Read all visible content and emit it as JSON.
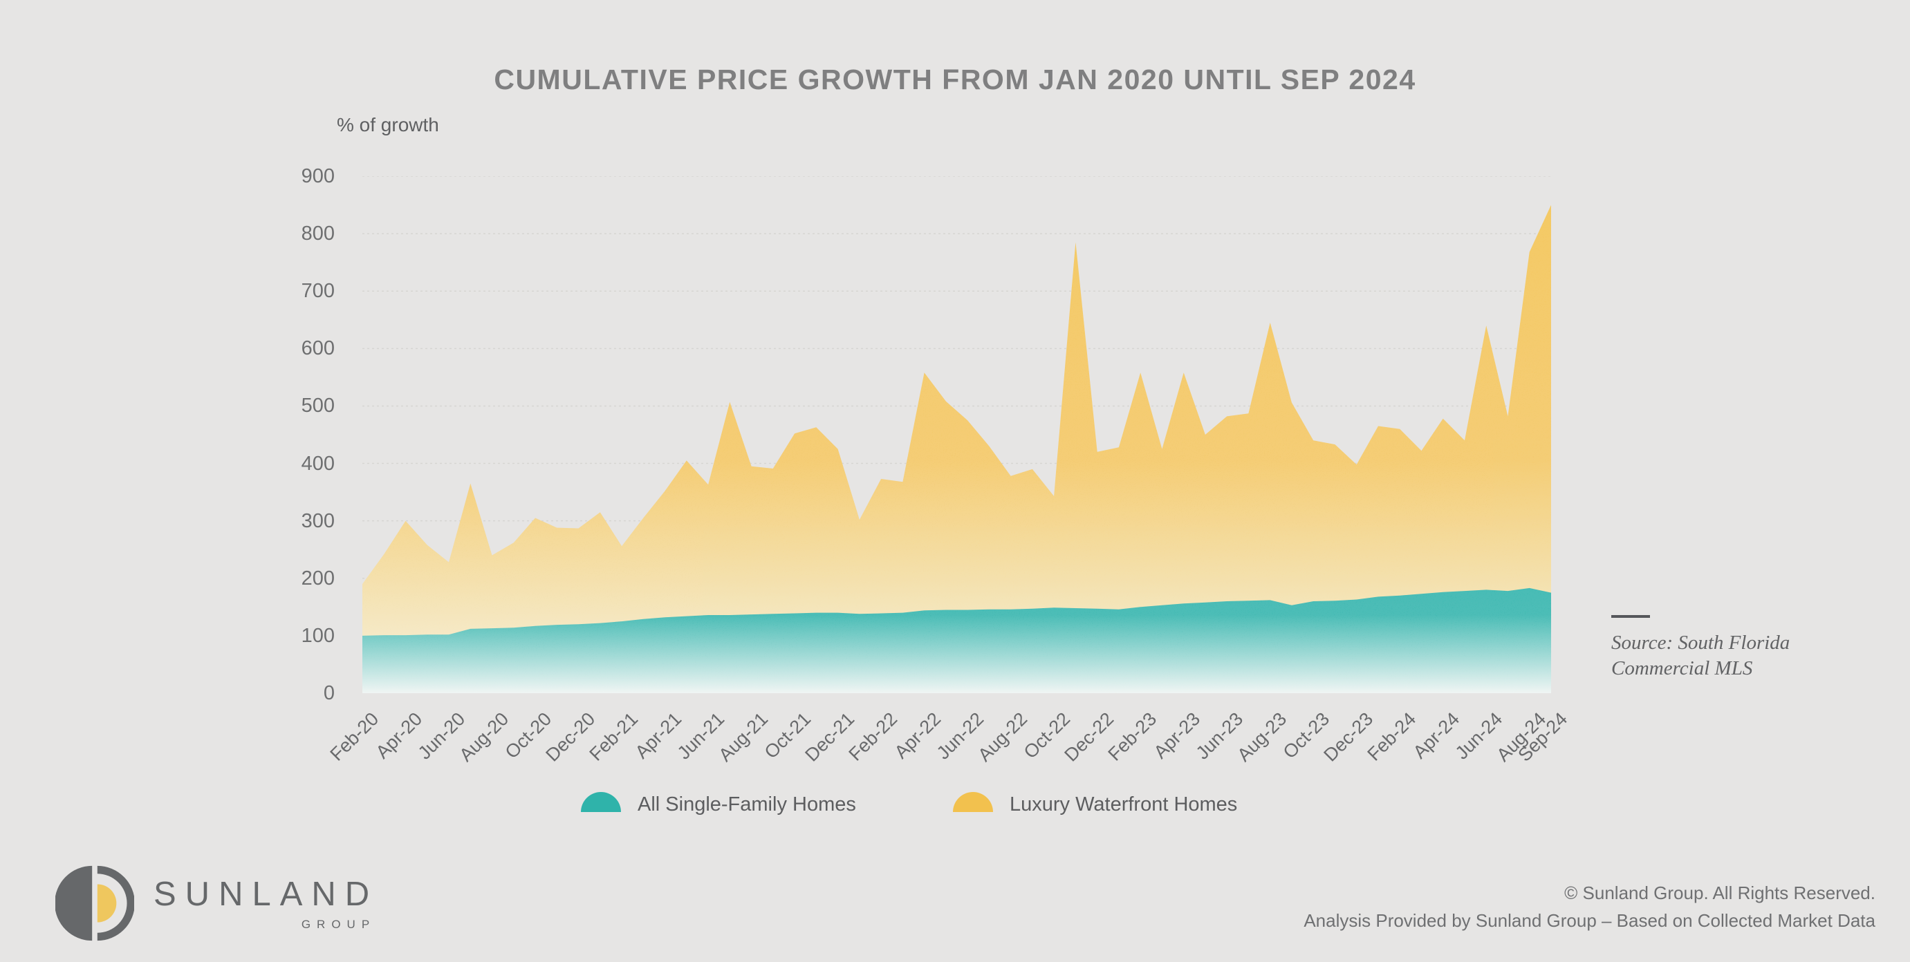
{
  "title": "CUMULATIVE PRICE GROWTH FROM JAN 2020 UNTIL SEP 2024",
  "y_axis_title": "% of growth",
  "legend": [
    {
      "label": "All Single-Family Homes",
      "color": "#2fb3aa"
    },
    {
      "label": "Luxury Waterfront Homes",
      "color": "#f2c14e"
    }
  ],
  "source_note": {
    "line1": "Source: South Florida",
    "line2": "Commercial MLS"
  },
  "logo": {
    "name": "SUNLAND",
    "subtitle": "GROUP"
  },
  "footer": {
    "copyright": "© Sunland Group. All Rights Reserved.",
    "analysis": "Analysis Provided by Sunland Group – Based on Collected Market Data"
  },
  "colors": {
    "background": "#e6e5e4",
    "teal": "#2fb3aa",
    "teal_solid": "#21afa7",
    "teal_fade": "#eef4f2",
    "yellow": "#f2c14e",
    "yellow_solid": "#f2bf47",
    "yellow_fade": "#f7efd9",
    "gridline": "#d6d5d2",
    "title_text": "#7f7f80",
    "axis_text": "#6e6f70"
  },
  "chart_data": {
    "type": "area",
    "title": "CUMULATIVE PRICE GROWTH FROM JAN 2020 UNTIL SEP 2024",
    "xlabel": "",
    "ylabel": "% of growth",
    "ylim": [
      0,
      900
    ],
    "yticks": [
      0,
      100,
      200,
      300,
      400,
      500,
      600,
      700,
      800,
      900
    ],
    "grid": "horizontal",
    "legend_position": "bottom",
    "x": [
      "Feb-20",
      "Mar-20",
      "Apr-20",
      "May-20",
      "Jun-20",
      "Jul-20",
      "Aug-20",
      "Sep-20",
      "Oct-20",
      "Nov-20",
      "Dec-20",
      "Jan-21",
      "Feb-21",
      "Mar-21",
      "Apr-21",
      "May-21",
      "Jun-21",
      "Jul-21",
      "Aug-21",
      "Sep-21",
      "Oct-21",
      "Nov-21",
      "Dec-21",
      "Jan-22",
      "Feb-22",
      "Mar-22",
      "Apr-22",
      "May-22",
      "Jun-22",
      "Jul-22",
      "Aug-22",
      "Sep-22",
      "Oct-22",
      "Nov-22",
      "Dec-22",
      "Jan-23",
      "Feb-23",
      "Mar-23",
      "Apr-23",
      "May-23",
      "Jun-23",
      "Jul-23",
      "Aug-23",
      "Sep-23",
      "Oct-23",
      "Nov-23",
      "Dec-23",
      "Jan-24",
      "Feb-24",
      "Mar-24",
      "Apr-24",
      "May-24",
      "Jun-24",
      "Jul-24",
      "Aug-24",
      "Sep-24"
    ],
    "x_tick_labels": [
      "Feb-20",
      "Apr-20",
      "Jun-20",
      "Aug-20",
      "Oct-20",
      "Dec-20",
      "Feb-21",
      "Apr-21",
      "Jun-21",
      "Aug-21",
      "Oct-21",
      "Dec-21",
      "Feb-22",
      "Apr-22",
      "Jun-22",
      "Aug-22",
      "Oct-22",
      "Dec-22",
      "Feb-23",
      "Apr-23",
      "Jun-23",
      "Aug-23",
      "Oct-23",
      "Dec-23",
      "Feb-24",
      "Apr-24",
      "Jun-24",
      "Aug-24",
      "Sep-24"
    ],
    "series": [
      {
        "name": "Luxury Waterfront Homes",
        "color": "#f2c14e",
        "values": [
          190,
          242,
          300,
          258,
          228,
          365,
          240,
          262,
          305,
          288,
          287,
          315,
          256,
          305,
          352,
          405,
          363,
          507,
          395,
          391,
          452,
          463,
          425,
          302,
          373,
          368,
          558,
          508,
          475,
          430,
          378,
          390,
          343,
          785,
          420,
          428,
          558,
          425,
          558,
          450,
          482,
          487,
          645,
          506,
          440,
          433,
          398,
          465,
          460,
          422,
          478,
          440,
          640,
          482,
          768,
          850
        ]
      },
      {
        "name": "All Single-Family Homes",
        "color": "#2fb3aa",
        "values": [
          100,
          101,
          101,
          102,
          102,
          112,
          113,
          114,
          117,
          119,
          120,
          122,
          125,
          129,
          132,
          134,
          136,
          136,
          137,
          138,
          139,
          140,
          140,
          138,
          139,
          140,
          144,
          145,
          145,
          146,
          146,
          147,
          149,
          148,
          147,
          146,
          150,
          153,
          156,
          158,
          160,
          161,
          162,
          153,
          160,
          161,
          163,
          168,
          170,
          173,
          176,
          178,
          180,
          178,
          183,
          175
        ]
      }
    ]
  }
}
